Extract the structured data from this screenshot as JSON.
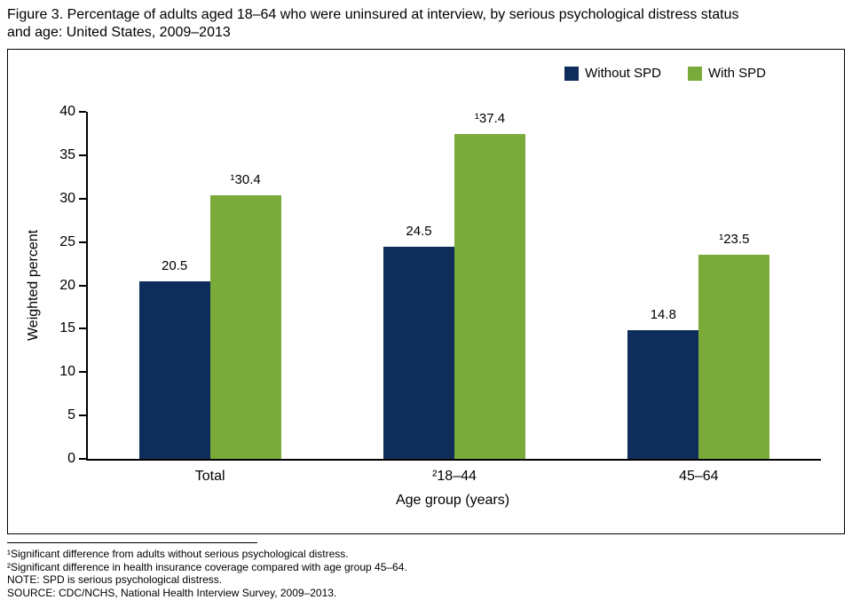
{
  "figure": {
    "title_line1": "Figure 3. Percentage of adults aged 18–64 who were uninsured at interview, by serious psychological distress status",
    "title_line2": "and age: United States, 2009–2013"
  },
  "colors": {
    "without_spd": "#0e2d5a",
    "with_spd": "#7aab3a",
    "axis": "#000000"
  },
  "chart_data": {
    "type": "bar",
    "categories": [
      "Total",
      "²18–44",
      "45–64"
    ],
    "series": [
      {
        "name": "Without SPD",
        "color": "#0e2d5a",
        "values": [
          20.5,
          24.5,
          14.8
        ],
        "labels": [
          "20.5",
          "24.5",
          "14.8"
        ]
      },
      {
        "name": "With SPD",
        "color": "#7aab3a",
        "values": [
          30.4,
          37.4,
          23.5
        ],
        "labels": [
          "¹30.4",
          "¹37.4",
          "¹23.5"
        ]
      }
    ],
    "title": "Percentage of adults aged 18–64 who were uninsured at interview, by serious psychological distress status and age: United States, 2009–2013",
    "xlabel": "Age group (years)",
    "ylabel": "Weighted percent",
    "ylim": [
      0,
      40
    ],
    "yticks": [
      0,
      5,
      10,
      15,
      20,
      25,
      30,
      35,
      40
    ],
    "grid": false,
    "legend_position": "top-right"
  },
  "footnotes": [
    "¹Significant difference from adults without serious psychological distress.",
    "²Significant difference in health insurance coverage compared with age group 45–64.",
    "NOTE: SPD is serious psychological distress.",
    "SOURCE: CDC/NCHS, National Health Interview Survey, 2009–2013."
  ]
}
